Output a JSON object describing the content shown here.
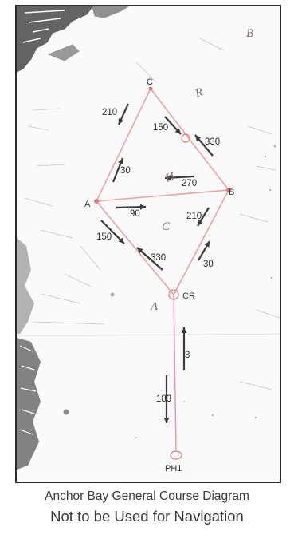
{
  "caption": {
    "line1": "Anchor Bay General Course Diagram",
    "line2": "Not to be Used for Navigation"
  },
  "marks": {
    "C": "C",
    "A": "A",
    "B": "B",
    "CR": "CR",
    "PH1": "PH1"
  },
  "bearings": {
    "c_to_a": "210",
    "a_to_c": "30",
    "c_to_b": "150",
    "b_to_c": "330",
    "b_to_a": "270",
    "a_to_b": "90",
    "b_to_cr": "210",
    "cr_to_b": "30",
    "a_to_cr": "150",
    "cr_to_a": "330",
    "ph1_to_cr": "3",
    "cr_to_ph1": "183"
  },
  "water_letters": {
    "top_right": "B",
    "right": "R",
    "center": "C",
    "mid_left": "A",
    "inner": "H"
  },
  "colors": {
    "course_line": "#e8a3a6",
    "buoy": "#e07b7b",
    "arrow": "#3a3a3a",
    "land": "#4a4a4a"
  }
}
